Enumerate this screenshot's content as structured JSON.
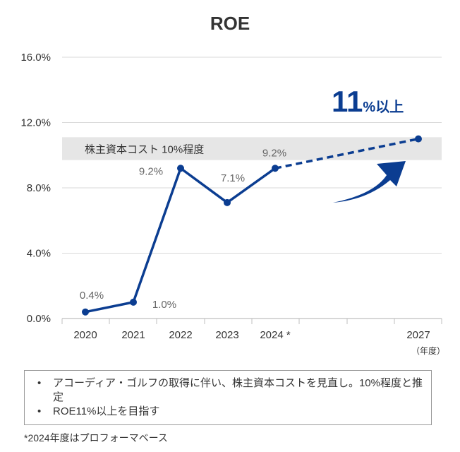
{
  "chart_data": {
    "type": "line",
    "title": "ROE",
    "categories": [
      "2020",
      "2021",
      "2022",
      "2023",
      "2024 *",
      "2027"
    ],
    "x_unit": "（年度）",
    "ylim": [
      0,
      16
    ],
    "yticks": [
      {
        "value": 0,
        "label": "0.0%"
      },
      {
        "value": 4,
        "label": "4.0%"
      },
      {
        "value": 8,
        "label": "8.0%"
      },
      {
        "value": 12,
        "label": "12.0%"
      },
      {
        "value": 16,
        "label": "16.0%"
      }
    ],
    "grid": true,
    "actual": [
      {
        "category": "2020",
        "value": 0.4,
        "label": "0.4%"
      },
      {
        "category": "2021",
        "value": 1.0,
        "label": "1.0%"
      },
      {
        "category": "2022",
        "value": 9.2,
        "label": "9.2%"
      },
      {
        "category": "2023",
        "value": 7.1,
        "label": "7.1%"
      },
      {
        "category": "2024 *",
        "value": 9.2,
        "label": "9.2%"
      }
    ],
    "projection": [
      {
        "category": "2024 *",
        "value": 9.2
      },
      {
        "category": "2027",
        "value": 11.0
      }
    ],
    "cost_band": {
      "from": 9.7,
      "to": 11.1,
      "label": "株主資本コスト 10%程度"
    },
    "target": {
      "number": "11",
      "suffix": "%以上"
    }
  },
  "notes": [
    "アコーディア・ゴルフの取得に伴い、株主資本コストを見直し。10%程度と推定",
    "ROE11%以上を目指す"
  ],
  "footnote": "*2024年度はプロフォーマベース",
  "colors": {
    "line": "#0b3d91",
    "band": "#e6e6e6",
    "grid": "#d9d9d9"
  }
}
